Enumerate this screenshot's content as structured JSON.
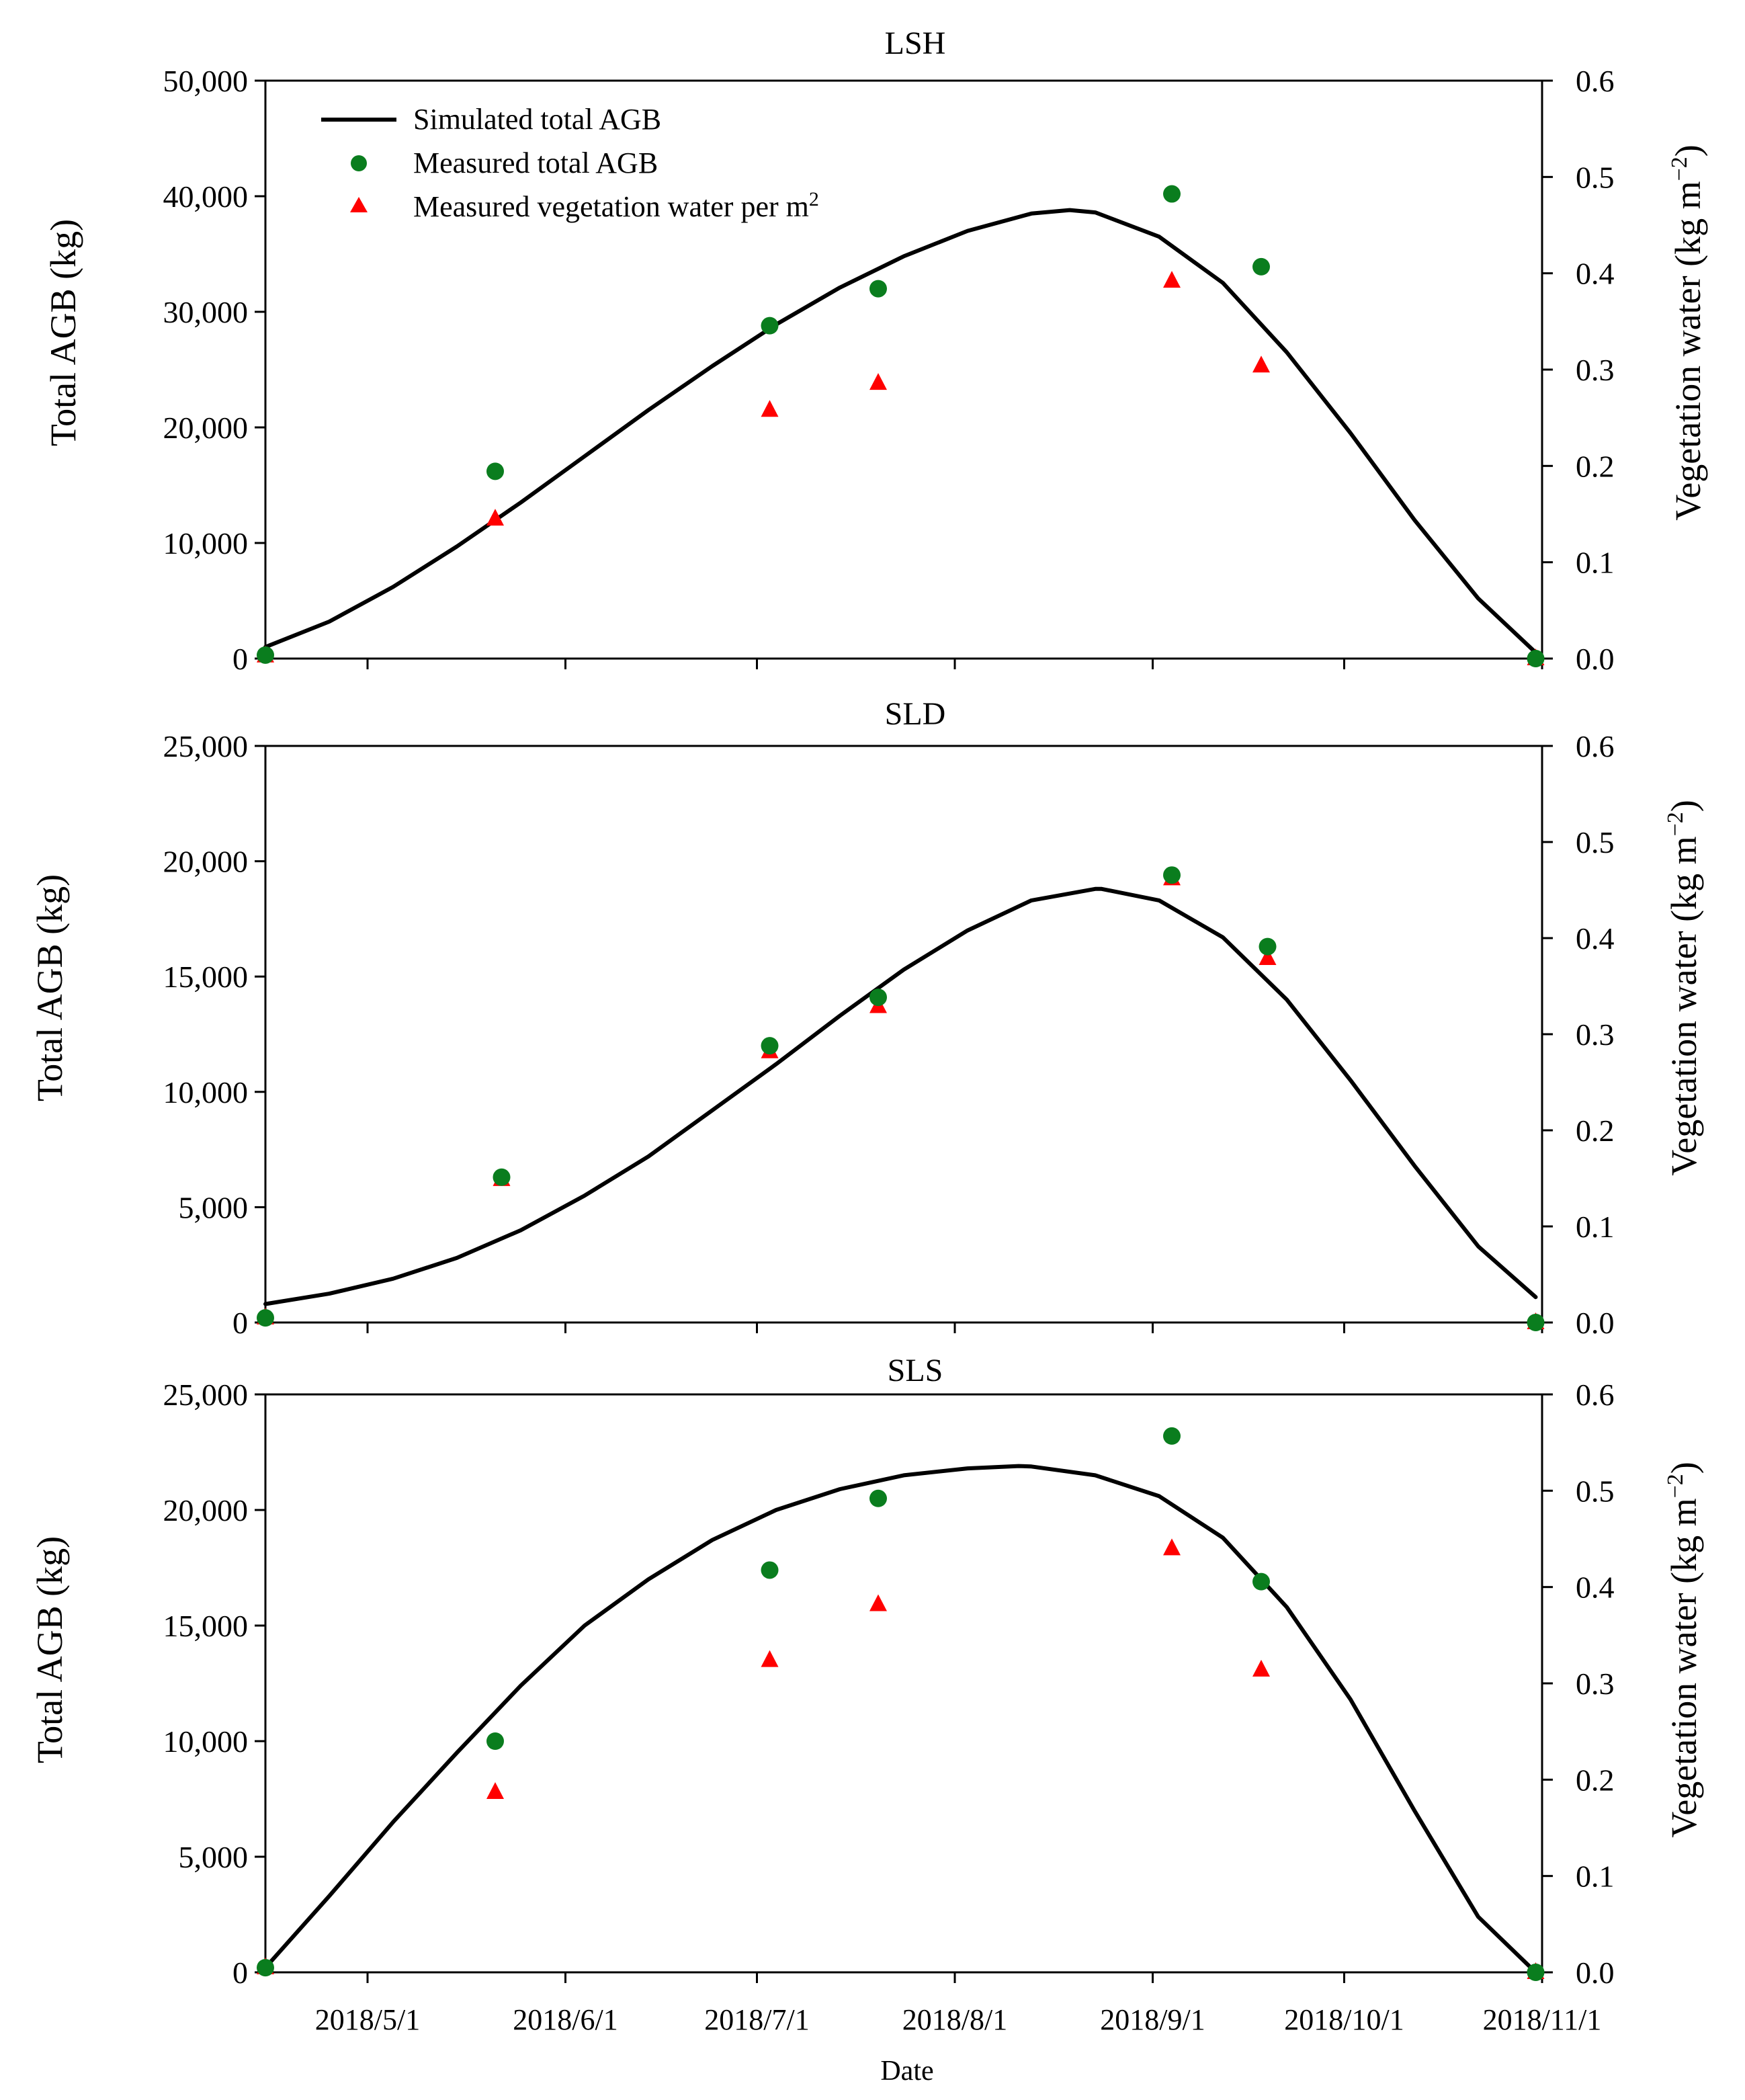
{
  "colors": {
    "curve": "#000000",
    "measured_agb": "#0a7d1e",
    "measured_water": "#ff0000",
    "axis": "#000000",
    "background": "#ffffff"
  },
  "legend": {
    "simulated": "Simulated total AGB",
    "measured_agb": "Measured total AGB",
    "measured_water_prefix": "Measured vegetation water per m",
    "measured_water_sup": "2"
  },
  "x_axis": {
    "title": "Date",
    "tick_labels": [
      "2018/5/1",
      "2018/6/1",
      "2018/7/1",
      "2018/8/1",
      "2018/9/1",
      "2018/10/1",
      "2018/11/1"
    ],
    "tick_days": [
      16,
      47,
      77,
      108,
      139,
      169,
      200
    ],
    "range": [
      0,
      200
    ],
    "range_note": "days since 2018/4/15"
  },
  "chart_data": [
    {
      "type": "scatter",
      "title": "LSH",
      "ylabel": "Total AGB (kg)",
      "y2label": "Vegetation water (kg m",
      "y2label_sup": "−2",
      "y2label_end": ")",
      "ylim": [
        0,
        50000
      ],
      "y2lim": [
        0,
        0.6
      ],
      "yticks": [
        0,
        10000,
        20000,
        30000,
        40000,
        50000
      ],
      "ytick_labels": [
        "0",
        "10,000",
        "20,000",
        "30,000",
        "40,000",
        "50,000"
      ],
      "y2ticks": [
        0,
        0.1,
        0.2,
        0.3,
        0.4,
        0.5,
        0.6
      ],
      "y2tick_labels": [
        "0.0",
        "0.1",
        "0.2",
        "0.3",
        "0.4",
        "0.5",
        "0.6"
      ],
      "simulated": {
        "name": "Simulated total AGB",
        "x": [
          0,
          10,
          20,
          30,
          40,
          50,
          60,
          70,
          80,
          90,
          100,
          110,
          120,
          126,
          130,
          140,
          150,
          160,
          170,
          180,
          190,
          200
        ],
        "y": [
          1000,
          3200,
          6200,
          9700,
          13500,
          17500,
          21500,
          25300,
          28900,
          32100,
          34800,
          37000,
          38500,
          38800,
          38600,
          36500,
          32500,
          26500,
          19500,
          12000,
          5200,
          0
        ]
      },
      "measured_agb": {
        "name": "Measured total AGB",
        "x": [
          0,
          36,
          79,
          96,
          142,
          156,
          199
        ],
        "y": [
          300,
          16200,
          28800,
          32000,
          40200,
          33900,
          0
        ]
      },
      "measured_water": {
        "name": "Measured vegetation water per m2",
        "x": [
          0,
          36,
          79,
          96,
          142,
          156,
          199
        ],
        "y": [
          0.003,
          0.145,
          0.258,
          0.286,
          0.392,
          0.304,
          0.0
        ]
      }
    },
    {
      "type": "scatter",
      "title": "SLD",
      "ylabel": "Total AGB (kg)",
      "y2label": "Vegetation water (kg m",
      "y2label_sup": "−2",
      "y2label_end": ")",
      "ylim": [
        0,
        25000
      ],
      "y2lim": [
        0,
        0.6
      ],
      "yticks": [
        0,
        5000,
        10000,
        15000,
        20000,
        25000
      ],
      "ytick_labels": [
        "0",
        "5,000",
        "10,000",
        "15,000",
        "20,000",
        "25,000"
      ],
      "y2ticks": [
        0,
        0.1,
        0.2,
        0.3,
        0.4,
        0.5,
        0.6
      ],
      "y2tick_labels": [
        "0.0",
        "0.1",
        "0.2",
        "0.3",
        "0.4",
        "0.5",
        "0.6"
      ],
      "simulated": {
        "name": "Simulated total AGB",
        "x": [
          0,
          10,
          20,
          30,
          40,
          50,
          60,
          70,
          80,
          90,
          100,
          110,
          120,
          130,
          131,
          140,
          150,
          160,
          170,
          180,
          190,
          199
        ],
        "y": [
          800,
          1250,
          1900,
          2800,
          4000,
          5500,
          7200,
          9200,
          11200,
          13300,
          15300,
          17000,
          18300,
          18800,
          18800,
          18300,
          16700,
          14000,
          10500,
          6800,
          3300,
          1100
        ]
      },
      "measured_agb": {
        "name": "Measured total AGB",
        "x": [
          0,
          37,
          79,
          96,
          142,
          157,
          199
        ],
        "y": [
          200,
          6300,
          12000,
          14100,
          19400,
          16300,
          0
        ]
      },
      "measured_water": {
        "name": "Measured vegetation water per m2",
        "x": [
          0,
          37,
          79,
          96,
          142,
          157,
          199
        ],
        "y": [
          0.005,
          0.149,
          0.282,
          0.329,
          0.462,
          0.379,
          0.0
        ]
      }
    },
    {
      "type": "scatter",
      "title": "SLS",
      "ylabel": "Total AGB (kg)",
      "y2label": "Vegetation water (kg m",
      "y2label_sup": "−2",
      "y2label_end": ")",
      "ylim": [
        0,
        25000
      ],
      "y2lim": [
        0,
        0.6
      ],
      "yticks": [
        0,
        5000,
        10000,
        15000,
        20000,
        25000
      ],
      "ytick_labels": [
        "0",
        "5,000",
        "10,000",
        "15,000",
        "20,000",
        "25,000"
      ],
      "y2ticks": [
        0,
        0.1,
        0.2,
        0.3,
        0.4,
        0.5,
        0.6
      ],
      "y2tick_labels": [
        "0.0",
        "0.1",
        "0.2",
        "0.3",
        "0.4",
        "0.5",
        "0.6"
      ],
      "simulated": {
        "name": "Simulated total AGB",
        "x": [
          0,
          10,
          20,
          30,
          40,
          50,
          60,
          70,
          80,
          90,
          100,
          110,
          118,
          120,
          130,
          140,
          150,
          160,
          170,
          180,
          190,
          199
        ],
        "y": [
          200,
          3300,
          6500,
          9500,
          12400,
          15000,
          17000,
          18700,
          20000,
          20900,
          21500,
          21800,
          21900,
          21880,
          21500,
          20600,
          18800,
          15800,
          11800,
          7000,
          2400,
          0
        ]
      },
      "measured_agb": {
        "name": "Measured total AGB",
        "x": [
          0,
          36,
          79,
          96,
          142,
          156,
          199
        ],
        "y": [
          200,
          10000,
          17400,
          20500,
          23200,
          16900,
          0
        ]
      },
      "measured_water": {
        "name": "Measured vegetation water per m2",
        "x": [
          0,
          36,
          79,
          96,
          142,
          156,
          199
        ],
        "y": [
          0.005,
          0.187,
          0.324,
          0.382,
          0.44,
          0.314,
          0.0
        ]
      }
    }
  ]
}
